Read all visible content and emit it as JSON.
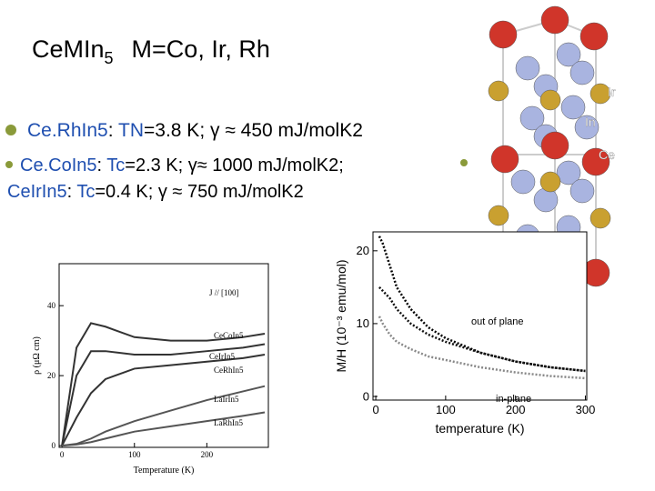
{
  "title": {
    "main": "CeMIn",
    "subscript": "5",
    "rest": "M=Co, Ir, Rh"
  },
  "bullets": [
    {
      "parts": [
        {
          "text": "Ce.RhIn5",
          "color": "#1f4fb0"
        },
        {
          "text": ": ",
          "color": "#000000"
        },
        {
          "text": "TN",
          "color": "#1f4fb0"
        },
        {
          "text": "=3.8 K; γ ≈ 450 mJ/molK2",
          "color": "#000000"
        }
      ]
    },
    {
      "parts": [
        {
          "text": "Ce.CoIn5",
          "color": "#1f4fb0"
        },
        {
          "text": ": ",
          "color": "#000000"
        },
        {
          "text": "Tc",
          "color": "#1f4fb0"
        },
        {
          "text": "=2.3 K; γ≈ 1000 mJ/molK2; ",
          "color": "#000000"
        }
      ]
    },
    {
      "parts": [
        {
          "text": "CeIrIn5",
          "color": "#1f4fb0"
        },
        {
          "text": ": ",
          "color": "#000000"
        },
        {
          "text": "Tc",
          "color": "#1f4fb0"
        },
        {
          "text": "=0.4 K; γ ≈ 750 mJ/molK2",
          "color": "#000000"
        }
      ]
    }
  ],
  "structure_labels": [
    "Ir",
    "In",
    "Ce"
  ],
  "figures": [
    {
      "type": "line",
      "xlabel": "Temperature (K)",
      "ylabel": "ρ (μΩ cm)",
      "x": [
        0,
        20,
        40,
        60,
        100,
        150,
        200,
        250,
        280
      ],
      "series": [
        {
          "color": "#333333",
          "values": [
            0,
            28,
            35,
            34,
            31,
            30,
            30,
            31,
            32
          ]
        },
        {
          "color": "#333333",
          "values": [
            0,
            20,
            27,
            27,
            26,
            26,
            27,
            28,
            29
          ]
        },
        {
          "color": "#333333",
          "values": [
            0,
            8,
            15,
            19,
            22,
            23,
            24,
            25,
            26
          ]
        },
        {
          "color": "#555555",
          "values": [
            0,
            0.5,
            2,
            4,
            7,
            10,
            13,
            15.5,
            17
          ]
        },
        {
          "color": "#555555",
          "values": [
            0,
            0.3,
            1,
            2,
            4,
            5.5,
            7,
            8.5,
            9.5
          ]
        }
      ],
      "annotations": [
        "J // [100]",
        "CeCoIn5",
        "CeIrIn5",
        "CeRhIn5",
        "LaIrIn5",
        "LaRhIn5"
      ],
      "xlim": [
        -4,
        285
      ],
      "ylim": [
        -0.5,
        52
      ],
      "xticks": [
        0,
        100,
        200
      ],
      "yticks": [
        0,
        20,
        40
      ]
    },
    {
      "type": "line",
      "xlabel": "temperature (K)",
      "ylabel": "M/H (10⁻³ emu/mol)",
      "x": [
        5,
        10,
        20,
        30,
        50,
        75,
        100,
        150,
        200,
        250,
        300
      ],
      "series": [
        {
          "color": "#000000",
          "values": [
            22,
            21,
            18,
            15,
            12,
            9.5,
            8,
            6,
            4.8,
            4,
            3.5
          ]
        },
        {
          "color": "#111111",
          "values": [
            15,
            14.5,
            13.5,
            12,
            10,
            8.5,
            7.5,
            6,
            4.8,
            4,
            3.5
          ]
        },
        {
          "color": "#888888",
          "values": [
            11,
            10,
            8.5,
            7.5,
            6.5,
            5.5,
            5,
            4,
            3.3,
            2.8,
            2.5
          ]
        }
      ],
      "annotations": [
        "out of plane",
        "in-plane"
      ],
      "xlim": [
        -4,
        302
      ],
      "ylim": [
        -0.5,
        22.6
      ],
      "xticks": [
        0,
        100,
        200,
        300
      ],
      "yticks": [
        0,
        10,
        20
      ]
    }
  ]
}
